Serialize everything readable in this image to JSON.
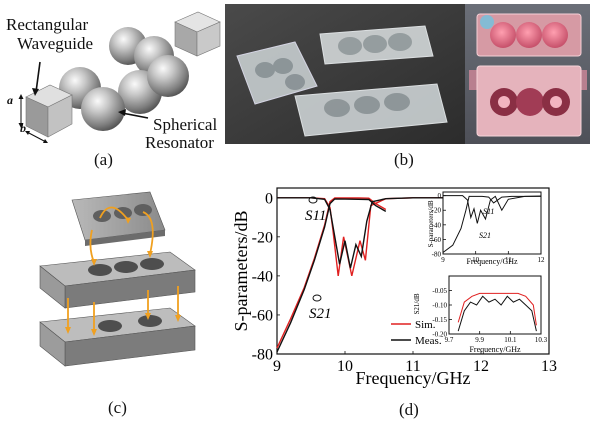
{
  "panel_a": {
    "label_waveguide_1": "Rectangular",
    "label_waveguide_2": "Waveguide",
    "label_a": "a",
    "label_b": "b",
    "label_resonator_1": "Spherical",
    "label_resonator_2": "Resonator",
    "caption": "(a)"
  },
  "panel_b": {
    "caption": "(b)"
  },
  "panel_c": {
    "caption": "(c)"
  },
  "panel_d": {
    "caption": "(d)",
    "colors": {
      "sim": "#e02020",
      "meas": "#111111"
    },
    "chart_data": [
      {
        "type": "line",
        "xlabel": "Frequency/GHz",
        "ylabel": "S-parameters/dB",
        "xlim": [
          9,
          13
        ],
        "ylim": [
          -80,
          5
        ],
        "xticks": [
          "9",
          "10",
          "11",
          "12",
          "13"
        ],
        "yticks": [
          "0",
          "-20",
          "-40",
          "-60",
          "-80"
        ],
        "annotations": [
          "S11",
          "S21"
        ],
        "legend": {
          "placement": "bottom-right",
          "entries": [
            "Sim.",
            "Meas."
          ]
        },
        "series": [
          {
            "name": "Sim.",
            "s21_x": [
              9.0,
              9.2,
              9.4,
              9.55,
              9.7,
              9.78,
              9.85,
              10.0,
              10.2,
              10.35,
              10.45,
              10.6
            ],
            "s21_y": [
              -77,
              -62,
              -46,
              -31,
              -14,
              -2,
              -0.1,
              -0.1,
              -0.1,
              -0.2,
              -3,
              -6
            ],
            "s11_x": [
              9.0,
              9.5,
              9.7,
              9.78,
              9.82,
              9.9,
              9.98,
              10.1,
              10.22,
              10.3,
              10.38,
              10.6,
              11.0,
              11.5,
              12.0
            ],
            "s11_y": [
              0,
              0,
              -0.5,
              -5,
              -16,
              -40,
              -20,
              -40,
              -22,
              -32,
              -4,
              -0.5,
              0,
              0,
              0
            ]
          },
          {
            "name": "Meas.",
            "s21_x": [
              9.0,
              9.2,
              9.4,
              9.55,
              9.7,
              9.78,
              9.85,
              10.0,
              10.2,
              10.35,
              10.45,
              10.6
            ],
            "s21_y": [
              -79,
              -64,
              -47,
              -32,
              -15,
              -3,
              -0.6,
              -0.7,
              -0.8,
              -0.9,
              -4,
              -7
            ],
            "s11_x": [
              9.0,
              9.5,
              9.7,
              9.78,
              9.84,
              9.92,
              10.0,
              10.08,
              10.16,
              10.24,
              10.32,
              10.4,
              10.6,
              11.0,
              11.5,
              12.0
            ],
            "s11_y": [
              0,
              0,
              -0.8,
              -6,
              -18,
              -34,
              -22,
              -36,
              -24,
              -30,
              -12,
              -2,
              -0.5,
              0,
              0,
              0
            ]
          }
        ]
      },
      {
        "type": "line",
        "xlabel": "Frequency/GHz",
        "ylabel": "S-parameters/dB",
        "xlim": [
          9,
          12
        ],
        "ylim": [
          -80,
          5
        ],
        "xticks": [
          "9",
          "10",
          "11",
          "12"
        ],
        "yticks": [
          "0",
          "-20",
          "-40",
          "-60",
          "-80"
        ],
        "annotations": [
          "S11",
          "S21"
        ],
        "series": [
          {
            "s21_x": [
              9.0,
              9.3,
              9.55,
              9.7,
              9.8,
              10.2,
              10.4,
              10.55,
              10.8,
              11.1,
              11.4,
              11.8,
              12.0
            ],
            "s21_y": [
              -78,
              -68,
              -45,
              -20,
              -1,
              -1,
              -2,
              -10,
              -2,
              -1,
              -1,
              -1,
              -1
            ],
            "s11_x": [
              9.0,
              9.6,
              9.75,
              9.85,
              9.95,
              10.05,
              10.15,
              10.3,
              10.45,
              10.6,
              10.8,
              11.0,
              11.5,
              12.0
            ],
            "s11_y": [
              0,
              0,
              -6,
              -30,
              -18,
              -38,
              -20,
              -32,
              -6,
              -1,
              -20,
              -5,
              -1,
              -0.5
            ]
          }
        ]
      },
      {
        "type": "line",
        "xlabel": "Frequency/GHz",
        "ylabel": "S21/dB",
        "xlim": [
          9.7,
          10.3
        ],
        "ylim": [
          -0.2,
          0
        ],
        "xticks": [
          "9.7",
          "9.9",
          "10.1",
          "10.3"
        ],
        "yticks": [
          "-0.05",
          "-0.10",
          "-0.15",
          "-0.20"
        ],
        "series": [
          {
            "name": "Sim.",
            "x": [
              9.76,
              9.8,
              9.85,
              9.9,
              9.95,
              10.0,
              10.05,
              10.1,
              10.15,
              10.2,
              10.25,
              10.27
            ],
            "y": [
              -0.16,
              -0.09,
              -0.07,
              -0.06,
              -0.06,
              -0.06,
              -0.06,
              -0.06,
              -0.06,
              -0.07,
              -0.1,
              -0.17
            ]
          },
          {
            "name": "Meas.",
            "x": [
              9.76,
              9.8,
              9.84,
              9.88,
              9.92,
              9.96,
              10.0,
              10.04,
              10.08,
              10.12,
              10.16,
              10.2,
              10.24,
              10.27
            ],
            "y": [
              -0.19,
              -0.12,
              -0.09,
              -0.1,
              -0.07,
              -0.09,
              -0.08,
              -0.1,
              -0.07,
              -0.09,
              -0.08,
              -0.1,
              -0.12,
              -0.19
            ]
          }
        ]
      }
    ]
  }
}
